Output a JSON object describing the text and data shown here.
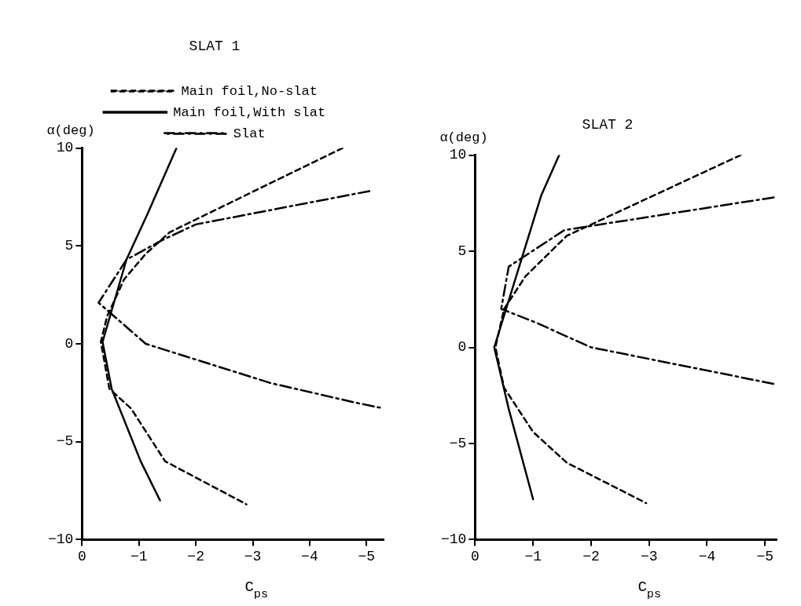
{
  "chart_data": [
    {
      "type": "line",
      "title": "SLAT 1",
      "xlabel": "C$_{ps}$",
      "ylabel": "α(deg)",
      "xlim": [
        0,
        -5.3
      ],
      "xticks": [
        0,
        -1,
        -2,
        -3,
        -4,
        -5
      ],
      "ylim": [
        -10,
        10
      ],
      "yticks": [
        -10,
        -5,
        0,
        5,
        10
      ],
      "grid": false,
      "legend": "top",
      "marker": "none",
      "series": [
        {
          "name": "Main foil,No-slat",
          "color": "#000000",
          "line_style": "dashed",
          "x": [
            -4.58,
            -1.54,
            -1.12,
            -0.74,
            -0.44,
            -0.33,
            -0.48,
            -0.86,
            -1.46,
            -2.89
          ],
          "values": [
            10,
            5.7,
            4.6,
            3.3,
            1.4,
            0.1,
            -2.3,
            -3.3,
            -6.0,
            -8.2
          ]
        },
        {
          "name": "Main foil,With slat",
          "color": "#000000",
          "line_style": "solid",
          "x": [
            -1.66,
            -1.16,
            -0.78,
            -0.36,
            -0.52,
            -1.03,
            -1.37
          ],
          "values": [
            10,
            6.7,
            4.3,
            0.1,
            -2.3,
            -6.0,
            -8.0
          ]
        },
        {
          "name": "Slat",
          "color": "#000000",
          "line_style": "dashdot",
          "x": [
            -5.05,
            -2.0,
            -1.41,
            -0.78,
            -0.29,
            -1.12,
            -3.31,
            -4.8,
            -5.3
          ],
          "values": [
            7.8,
            6.1,
            5.3,
            4.3,
            2.1,
            0.0,
            -2.0,
            -3.0,
            -3.3
          ]
        }
      ]
    },
    {
      "type": "line",
      "title": "SLAT 2",
      "xlabel": "C$_{ps}$",
      "ylabel": "α(deg)",
      "xlim": [
        0,
        -5.2
      ],
      "xticks": [
        0,
        -1,
        -2,
        -3,
        -4,
        -5
      ],
      "ylim": [
        -10,
        10
      ],
      "yticks": [
        -10,
        -5,
        0,
        5,
        10
      ],
      "grid": false,
      "legend": false,
      "marker": "none",
      "series": [
        {
          "color": "#000000",
          "line_style": "dashed",
          "x": [
            -4.58,
            -1.58,
            -0.87,
            -0.5,
            -0.35,
            -0.5,
            -1.0,
            -1.58,
            -2.95
          ],
          "values": [
            10,
            5.8,
            3.7,
            2.0,
            0.0,
            -2.1,
            -4.4,
            -6.0,
            -8.1
          ]
        },
        {
          "color": "#000000",
          "line_style": "solid",
          "x": [
            -1.45,
            -1.14,
            -0.33,
            -0.58,
            -1.0
          ],
          "values": [
            10,
            7.9,
            0,
            -3.2,
            -7.9
          ]
        },
        {
          "color": "#000000",
          "line_style": "dashdot",
          "x": [
            -5.15,
            -1.54,
            -0.58,
            -0.45,
            -1.04,
            -2.0,
            -5.15
          ],
          "values": [
            7.8,
            6.1,
            4.2,
            2.0,
            1.3,
            0.0,
            -1.9
          ]
        }
      ]
    }
  ]
}
